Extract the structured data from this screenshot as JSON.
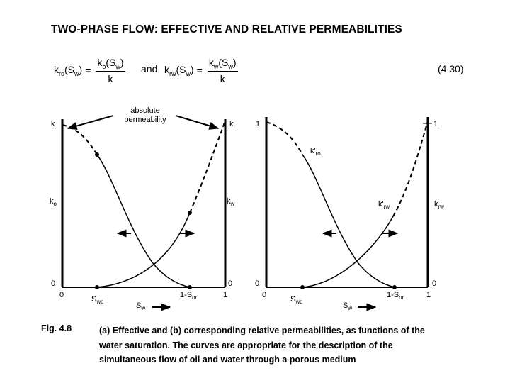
{
  "title": "TWO-PHASE FLOW: EFFECTIVE AND RELATIVE PERMEABILITIES",
  "equation": {
    "lhs1": "k",
    "lhs1_sub": "ro",
    "lhs1_arg": "(S",
    "lhs1_arg_sub": "w",
    "lhs1_close": ")",
    "num1": "k",
    "num1_sub": "o",
    "num1_arg": "(S",
    "num1_arg_sub": "w",
    "num1_close": ")",
    "den1": "k",
    "and": "and",
    "lhs2": "k",
    "lhs2_sub": "rw",
    "lhs2_arg": "(S",
    "lhs2_arg_sub": "w",
    "lhs2_close": ")",
    "num2": "k",
    "num2_sub": "w",
    "num2_arg": "(S",
    "num2_arg_sub": "w",
    "num2_close": ")",
    "den2": "k",
    "equals": "=",
    "number": "(4.30)"
  },
  "left_diagram": {
    "annotation_line1": "absolute",
    "annotation_line2": "permeability",
    "y_left_top": "k",
    "y_right_top": "k",
    "y_left_mid": "k",
    "y_left_mid_sub": "o",
    "y_right_mid": "k",
    "y_right_mid_sub": "w",
    "y_left_zero": "0",
    "y_right_zero": "0",
    "x_zero": "0",
    "x_one": "1",
    "x_swc": "S",
    "x_swc_sub": "wc",
    "x_sor": "1-S",
    "x_sor_sub": "or",
    "x_axis": "S",
    "x_axis_sub": "w"
  },
  "right_diagram": {
    "y_left_top": "1",
    "y_right_top": "1",
    "kro_label": "k'",
    "kro_label_sub": "ro",
    "krw_curve_label": "k'",
    "krw_curve_label_sub": "rw",
    "y_right_mid": "k",
    "y_right_mid_sub": "rw",
    "y_left_zero": "0",
    "y_right_zero": "0",
    "x_zero": "0",
    "x_one": "1",
    "x_swc": "S",
    "x_swc_sub": "wc",
    "x_sor": "1-S",
    "x_sor_sub": "or",
    "x_axis": "S",
    "x_axis_sub": "w"
  },
  "caption": {
    "label": "Fig. 4.8",
    "line1": "(a) Effective and (b) corresponding relative permeabilities, as functions of the",
    "line2": "water saturation. The curves are appropriate for the description of the",
    "line3": "simultaneous flow of oil and water through a porous medium"
  }
}
